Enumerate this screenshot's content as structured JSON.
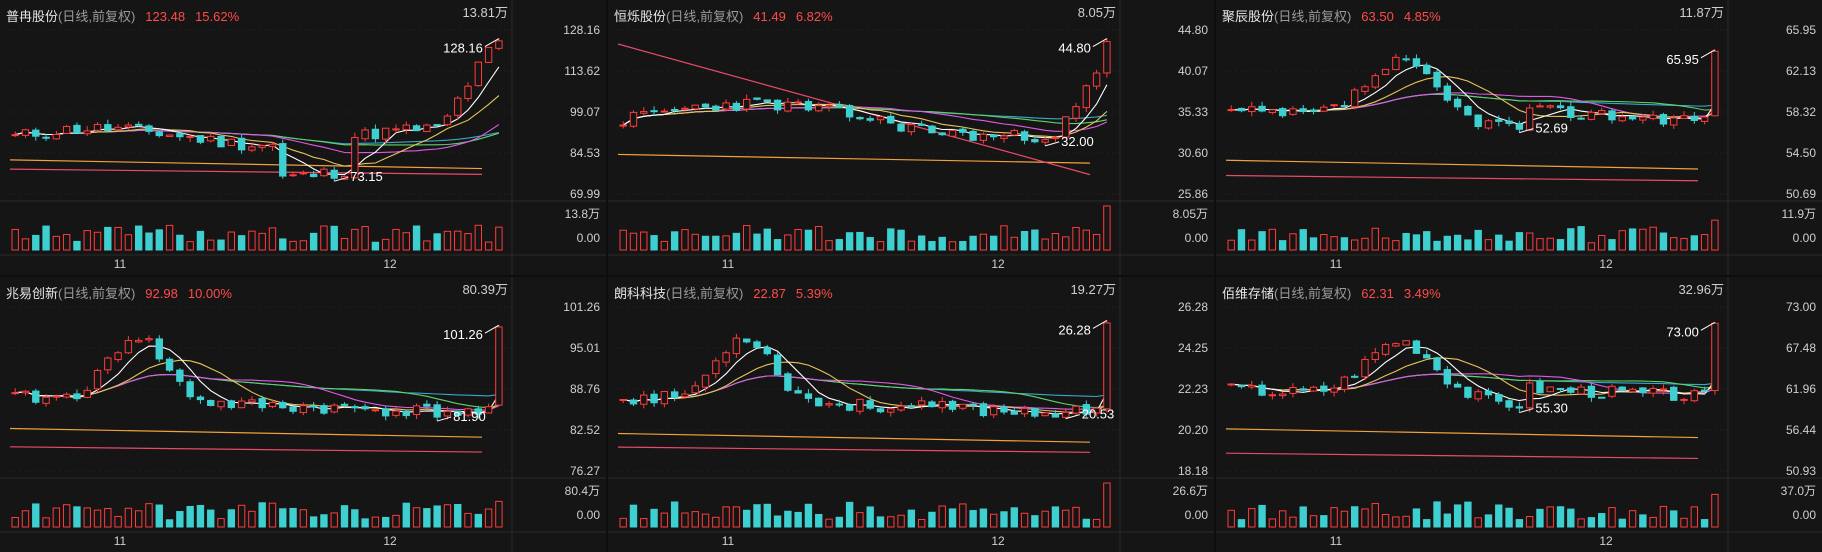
{
  "colors": {
    "up": "#ff3b3b",
    "down": "#3ecfd0",
    "ma5": "#ffffff",
    "ma10": "#e7c35a",
    "ma20": "#e05ae6",
    "ma30": "#5fd26a",
    "ma60": "#38a8c8",
    "ma120": "#f0a03c",
    "ma250": "#e84b6a"
  },
  "panels": [
    {
      "name": "普冉股份",
      "mode": "(日线,前复权)",
      "price": "123.48",
      "pct": "15.62%",
      "vol_max": "13.81万",
      "vol_axis": "13.8万",
      "vol_zero": "0.00",
      "price_ticks": [
        "128.16",
        "113.62",
        "99.07",
        "84.53",
        "69.99"
      ],
      "high_label": "128.16",
      "low_label": "73.15",
      "x_labels": [
        "11",
        "12"
      ],
      "seed": 11,
      "hi": 128.16,
      "lo": 69.99,
      "shape": "rise_end"
    },
    {
      "name": "恒烁股份",
      "mode": "(日线,前复权)",
      "price": "41.49",
      "pct": "6.82%",
      "vol_max": "8.05万",
      "vol_axis": "8.05万",
      "vol_zero": "0.00",
      "price_ticks": [
        "44.80",
        "40.07",
        "35.33",
        "30.60",
        "25.86"
      ],
      "high_label": "44.80",
      "low_label": "32.00",
      "x_labels": [
        "11",
        "12"
      ],
      "seed": 23,
      "hi": 44.8,
      "lo": 25.86,
      "shape": "flat_rise"
    },
    {
      "name": "聚辰股份",
      "mode": "(日线,前复权)",
      "price": "63.50",
      "pct": "4.85%",
      "vol_max": "11.87万",
      "vol_axis": "11.9万",
      "vol_zero": "0.00",
      "price_ticks": [
        "65.95",
        "62.13",
        "58.32",
        "54.50",
        "50.69"
      ],
      "high_label": "65.95",
      "low_label": "52.69",
      "x_labels": [
        "11",
        "12"
      ],
      "seed": 37,
      "hi": 65.95,
      "lo": 50.69,
      "shape": "peak_mid"
    },
    {
      "name": "兆易创新",
      "mode": "(日线,前复权)",
      "price": "92.98",
      "pct": "10.00%",
      "vol_max": "80.39万",
      "vol_axis": "80.4万",
      "vol_zero": "0.00",
      "price_ticks": [
        "101.26",
        "95.01",
        "88.76",
        "82.52",
        "76.27"
      ],
      "high_label": "101.26",
      "low_label": "81.90",
      "x_labels": [
        "11",
        "12"
      ],
      "seed": 41,
      "hi": 101.26,
      "lo": 76.27,
      "shape": "peak_early"
    },
    {
      "name": "朗科科技",
      "mode": "(日线,前复权)",
      "price": "22.87",
      "pct": "5.39%",
      "vol_max": "19.27万",
      "vol_axis": "26.6万",
      "vol_zero": "0.00",
      "price_ticks": [
        "26.28",
        "24.25",
        "22.23",
        "20.20",
        "18.18"
      ],
      "high_label": "26.28",
      "low_label": "20.53",
      "x_labels": [
        "11",
        "12"
      ],
      "seed": 53,
      "hi": 26.28,
      "lo": 18.18,
      "shape": "peak_early"
    },
    {
      "name": "佰维存储",
      "mode": "(日线,前复权)",
      "price": "62.31",
      "pct": "3.49%",
      "vol_max": "32.96万",
      "vol_axis": "37.0万",
      "vol_zero": "0.00",
      "price_ticks": [
        "73.00",
        "67.48",
        "61.96",
        "56.44",
        "50.93"
      ],
      "high_label": "73.00",
      "low_label": "55.30",
      "x_labels": [
        "11",
        "12"
      ],
      "seed": 67,
      "hi": 73.0,
      "lo": 50.93,
      "shape": "peak_mid"
    }
  ]
}
